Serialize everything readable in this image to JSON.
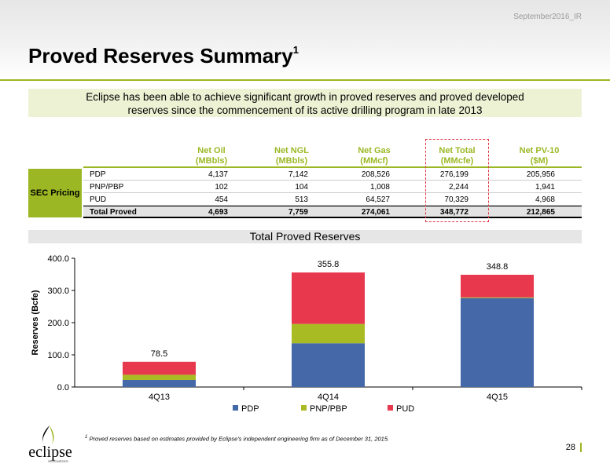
{
  "header": {
    "tag": "September2016_IR",
    "title": "Proved Reserves Summary",
    "title_sup": "1"
  },
  "intro": {
    "line1": "Eclipse has been able to achieve significant growth in proved reserves and proved developed",
    "line2": "reserves since the commencement of its active drilling program in late 2013"
  },
  "table": {
    "columns": [
      {
        "l1": "Net Oil",
        "l2": "(MBbls)"
      },
      {
        "l1": "Net NGL",
        "l2": "(MBbls)"
      },
      {
        "l1": "Net Gas",
        "l2": "(MMcf)"
      },
      {
        "l1": "Net Total",
        "l2": "(MMcfe)"
      },
      {
        "l1": "Net PV-10",
        "l2": "($M)"
      }
    ],
    "group_label": "SEC Pricing",
    "rows": [
      {
        "label": "PDP",
        "values": [
          "4,137",
          "7,142",
          "208,526",
          "276,199",
          "205,956"
        ]
      },
      {
        "label": "PNP/PBP",
        "values": [
          "102",
          "104",
          "1,008",
          "2,244",
          "1,941"
        ]
      },
      {
        "label": "PUD",
        "values": [
          "454",
          "513",
          "64,527",
          "70,329",
          "4,968"
        ]
      },
      {
        "label": "Total Proved",
        "values": [
          "4,693",
          "7,759",
          "274,061",
          "348,772",
          "212,865"
        ]
      }
    ]
  },
  "chart_data": {
    "type": "bar",
    "stacked": true,
    "title": "Total Proved Reserves",
    "ylabel": "Reserves (Bcfe)",
    "xlabel": "",
    "ylim": [
      0,
      400
    ],
    "yticks": [
      "0.0",
      "100.0",
      "200.0",
      "300.0",
      "400.0"
    ],
    "categories": [
      "4Q13",
      "4Q14",
      "4Q15"
    ],
    "series": [
      {
        "name": "PDP",
        "color": "#4468a8",
        "values": [
          22,
          136,
          276.2
        ]
      },
      {
        "name": "PNP/PBP",
        "color": "#a9bb22",
        "values": [
          16,
          60,
          2.2
        ]
      },
      {
        "name": "PUD",
        "color": "#e8384d",
        "values": [
          40.5,
          159.8,
          70.3
        ]
      }
    ],
    "totals": [
      "78.5",
      "355.8",
      "348.8"
    ],
    "legend_position": "bottom"
  },
  "footnote": {
    "sup": "1",
    "text": "Proved reserves based on estimates provided by Eclipse's independent engineering firm as of December 31, 2015."
  },
  "logo": {
    "text": "eclipse",
    "sub": "RESOURCES"
  },
  "page_number": "28"
}
